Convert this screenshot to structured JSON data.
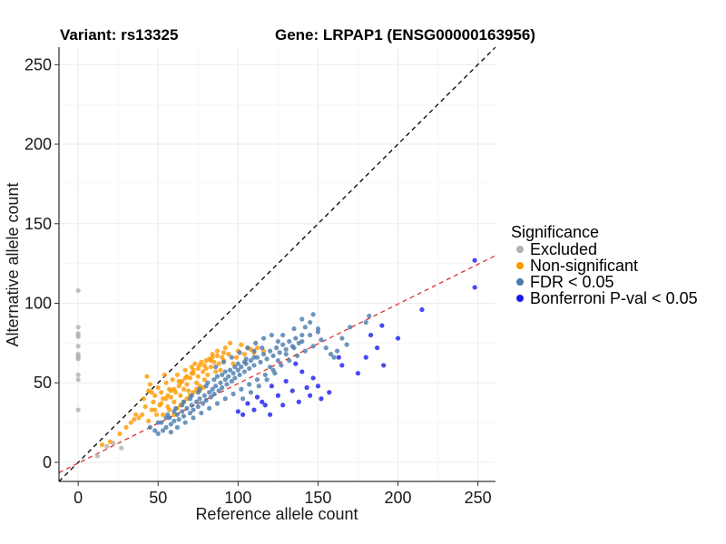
{
  "chart_data": {
    "type": "scatter",
    "title_left": "Variant: rs13325",
    "title_right": "Gene: LRPAP1 (ENSG00000163956)",
    "xlabel": "Reference allele count",
    "ylabel": "Alternative allele count",
    "xlim": [
      -12,
      261
    ],
    "ylim": [
      -12,
      261
    ],
    "x_ticks": [
      0,
      50,
      100,
      150,
      200,
      250
    ],
    "y_ticks": [
      0,
      50,
      100,
      150,
      200,
      250
    ],
    "grid": true,
    "legend": {
      "title": "Significance",
      "position": "right",
      "items": [
        {
          "label": "Excluded",
          "color": "#b0b0b0"
        },
        {
          "label": "Non-significant",
          "color": "#ff9900"
        },
        {
          "label": "FDR < 0.05",
          "color": "#4a7bab"
        },
        {
          "label": "Bonferroni P-val < 0.05",
          "color": "#1a1aee"
        }
      ]
    },
    "reference_lines": [
      {
        "kind": "identity",
        "slope": 1,
        "intercept": 0,
        "color": "#000000",
        "style": "dashed"
      },
      {
        "kind": "fit",
        "slope": 0.5,
        "intercept": -0.5,
        "color": "#e03030",
        "style": "dashed"
      }
    ],
    "series": [
      {
        "name": "Excluded",
        "color": "#b0b0b0",
        "points": [
          [
            0,
            108
          ],
          [
            0,
            85
          ],
          [
            0,
            81
          ],
          [
            0,
            80
          ],
          [
            0,
            79
          ],
          [
            0,
            73
          ],
          [
            0,
            68
          ],
          [
            0,
            67
          ],
          [
            0,
            66
          ],
          [
            0,
            65
          ],
          [
            0,
            55
          ],
          [
            0,
            52
          ],
          [
            0,
            33
          ],
          [
            27,
            9
          ],
          [
            22,
            12
          ],
          [
            12,
            4
          ],
          [
            18,
            10
          ]
        ]
      },
      {
        "name": "Non-significant",
        "color": "#ff9900",
        "points": [
          [
            43,
            54
          ],
          [
            45,
            49
          ],
          [
            44,
            45
          ],
          [
            48,
            42
          ],
          [
            50,
            47
          ],
          [
            52,
            44
          ],
          [
            47,
            38
          ],
          [
            46,
            33
          ],
          [
            49,
            30
          ],
          [
            51,
            36
          ],
          [
            53,
            40
          ],
          [
            55,
            50
          ],
          [
            57,
            46
          ],
          [
            54,
            55
          ],
          [
            58,
            41
          ],
          [
            60,
            38
          ],
          [
            56,
            35
          ],
          [
            61,
            44
          ],
          [
            63,
            48
          ],
          [
            59,
            52
          ],
          [
            62,
            55
          ],
          [
            64,
            42
          ],
          [
            66,
            46
          ],
          [
            65,
            51
          ],
          [
            67,
            58
          ],
          [
            68,
            49
          ],
          [
            70,
            53
          ],
          [
            69,
            45
          ],
          [
            71,
            60
          ],
          [
            72,
            56
          ],
          [
            74,
            50
          ],
          [
            73,
            62
          ],
          [
            75,
            54
          ],
          [
            76,
            48
          ],
          [
            78,
            57
          ],
          [
            77,
            63
          ],
          [
            79,
            52
          ],
          [
            80,
            59
          ],
          [
            82,
            65
          ],
          [
            81,
            55
          ],
          [
            83,
            60
          ],
          [
            84,
            68
          ],
          [
            86,
            57
          ],
          [
            85,
            63
          ],
          [
            88,
            62
          ],
          [
            87,
            70
          ],
          [
            90,
            66
          ],
          [
            89,
            58
          ],
          [
            92,
            72
          ],
          [
            91,
            64
          ],
          [
            94,
            68
          ],
          [
            95,
            75
          ],
          [
            97,
            62
          ],
          [
            99,
            66
          ],
          [
            100,
            70
          ],
          [
            102,
            74
          ],
          [
            104,
            68
          ],
          [
            106,
            72
          ],
          [
            108,
            71
          ],
          [
            110,
            69
          ],
          [
            112,
            72
          ],
          [
            116,
            70
          ],
          [
            40,
            30
          ],
          [
            42,
            35
          ],
          [
            38,
            28
          ],
          [
            44,
            26
          ],
          [
            41,
            40
          ],
          [
            46,
            44
          ],
          [
            53,
            30
          ],
          [
            57,
            33
          ],
          [
            60,
            30
          ],
          [
            62,
            34
          ],
          [
            64,
            36
          ],
          [
            66,
            38
          ],
          [
            68,
            40
          ],
          [
            70,
            42
          ],
          [
            72,
            44
          ],
          [
            74,
            46
          ],
          [
            76,
            45
          ],
          [
            78,
            47
          ],
          [
            55,
            40
          ],
          [
            58,
            45
          ],
          [
            63,
            51
          ],
          [
            67,
            53
          ],
          [
            71,
            56
          ],
          [
            75,
            59
          ],
          [
            79,
            61
          ],
          [
            83,
            64
          ],
          [
            87,
            67
          ],
          [
            91,
            69
          ],
          [
            48,
            33
          ],
          [
            52,
            37
          ],
          [
            56,
            42
          ],
          [
            60,
            46
          ],
          [
            64,
            50
          ],
          [
            68,
            54
          ],
          [
            72,
            58
          ],
          [
            76,
            61
          ],
          [
            80,
            64
          ],
          [
            84,
            66
          ],
          [
            26,
            18
          ],
          [
            30,
            22
          ],
          [
            33,
            25
          ],
          [
            36,
            30
          ],
          [
            35,
            27
          ],
          [
            20,
            13
          ],
          [
            15,
            11
          ]
        ]
      },
      {
        "name": "FDR < 0.05",
        "color": "#4a7bab",
        "points": [
          [
            45,
            22
          ],
          [
            48,
            20
          ],
          [
            50,
            18
          ],
          [
            52,
            25
          ],
          [
            55,
            22
          ],
          [
            57,
            28
          ],
          [
            58,
            24
          ],
          [
            60,
            26
          ],
          [
            62,
            30
          ],
          [
            63,
            27
          ],
          [
            65,
            32
          ],
          [
            66,
            29
          ],
          [
            68,
            34
          ],
          [
            70,
            31
          ],
          [
            71,
            36
          ],
          [
            72,
            33
          ],
          [
            74,
            38
          ],
          [
            75,
            35
          ],
          [
            76,
            40
          ],
          [
            78,
            37
          ],
          [
            79,
            42
          ],
          [
            80,
            39
          ],
          [
            82,
            44
          ],
          [
            83,
            41
          ],
          [
            84,
            46
          ],
          [
            85,
            43
          ],
          [
            86,
            48
          ],
          [
            88,
            45
          ],
          [
            89,
            50
          ],
          [
            90,
            47
          ],
          [
            92,
            52
          ],
          [
            93,
            49
          ],
          [
            94,
            54
          ],
          [
            96,
            51
          ],
          [
            97,
            56
          ],
          [
            98,
            53
          ],
          [
            100,
            58
          ],
          [
            101,
            55
          ],
          [
            102,
            60
          ],
          [
            104,
            57
          ],
          [
            105,
            62
          ],
          [
            107,
            59
          ],
          [
            108,
            64
          ],
          [
            110,
            61
          ],
          [
            112,
            66
          ],
          [
            114,
            63
          ],
          [
            116,
            68
          ],
          [
            118,
            65
          ],
          [
            120,
            70
          ],
          [
            122,
            67
          ],
          [
            124,
            72
          ],
          [
            126,
            69
          ],
          [
            128,
            74
          ],
          [
            130,
            71
          ],
          [
            132,
            76
          ],
          [
            134,
            73
          ],
          [
            136,
            78
          ],
          [
            138,
            75
          ],
          [
            140,
            80
          ],
          [
            142,
            85
          ],
          [
            145,
            88
          ],
          [
            147,
            93
          ],
          [
            150,
            82
          ],
          [
            152,
            77
          ],
          [
            155,
            72
          ],
          [
            158,
            68
          ],
          [
            160,
            66
          ],
          [
            162,
            70
          ],
          [
            165,
            78
          ],
          [
            168,
            74
          ],
          [
            180,
            88
          ],
          [
            182,
            92
          ],
          [
            170,
            85
          ],
          [
            140,
            90
          ],
          [
            135,
            84
          ],
          [
            128,
            80
          ],
          [
            125,
            76
          ],
          [
            115,
            72
          ],
          [
            110,
            70
          ],
          [
            105,
            65
          ],
          [
            100,
            62
          ],
          [
            95,
            58
          ],
          [
            90,
            55
          ],
          [
            85,
            52
          ],
          [
            80,
            48
          ],
          [
            75,
            44
          ],
          [
            70,
            40
          ],
          [
            65,
            36
          ],
          [
            60,
            32
          ],
          [
            55,
            28
          ],
          [
            50,
            25
          ],
          [
            53,
            20
          ],
          [
            58,
            19
          ],
          [
            62,
            22
          ],
          [
            67,
            25
          ],
          [
            72,
            28
          ],
          [
            77,
            31
          ],
          [
            82,
            34
          ],
          [
            87,
            37
          ],
          [
            92,
            40
          ],
          [
            97,
            43
          ],
          [
            102,
            46
          ],
          [
            107,
            49
          ],
          [
            112,
            52
          ],
          [
            117,
            55
          ],
          [
            122,
            58
          ],
          [
            127,
            61
          ],
          [
            132,
            64
          ],
          [
            137,
            67
          ],
          [
            142,
            70
          ],
          [
            147,
            73
          ],
          [
            103,
            40
          ],
          [
            108,
            44
          ],
          [
            113,
            48
          ],
          [
            118,
            52
          ],
          [
            123,
            56
          ],
          [
            86,
            60
          ],
          [
            91,
            63
          ],
          [
            96,
            66
          ],
          [
            101,
            69
          ],
          [
            106,
            72
          ],
          [
            111,
            75
          ],
          [
            116,
            78
          ],
          [
            121,
            80
          ],
          [
            56,
            30
          ],
          [
            61,
            34
          ],
          [
            66,
            38
          ],
          [
            71,
            42
          ],
          [
            76,
            46
          ],
          [
            81,
            50
          ],
          [
            87,
            54
          ],
          [
            92,
            57
          ],
          [
            98,
            60
          ],
          [
            104,
            63
          ],
          [
            110,
            66
          ],
          [
            120,
            60
          ],
          [
            125,
            64
          ],
          [
            130,
            68
          ],
          [
            135,
            72
          ],
          [
            140,
            76
          ],
          [
            145,
            80
          ],
          [
            150,
            84
          ]
        ]
      },
      {
        "name": "Bonferroni P-val < 0.05",
        "color": "#1a1aee",
        "points": [
          [
            248,
            127
          ],
          [
            248,
            110
          ],
          [
            215,
            96
          ],
          [
            200,
            78
          ],
          [
            190,
            86
          ],
          [
            191,
            61
          ],
          [
            187,
            72
          ],
          [
            183,
            80
          ],
          [
            180,
            66
          ],
          [
            175,
            56
          ],
          [
            165,
            61
          ],
          [
            163,
            66
          ],
          [
            157,
            44
          ],
          [
            150,
            48
          ],
          [
            147,
            53
          ],
          [
            145,
            42
          ],
          [
            140,
            57
          ],
          [
            138,
            38
          ],
          [
            134,
            45
          ],
          [
            130,
            51
          ],
          [
            128,
            36
          ],
          [
            125,
            42
          ],
          [
            121,
            48
          ],
          [
            120,
            30
          ],
          [
            117,
            36
          ],
          [
            115,
            38
          ],
          [
            112,
            41
          ],
          [
            110,
            33
          ],
          [
            106,
            37
          ],
          [
            103,
            30
          ],
          [
            100,
            32
          ],
          [
            152,
            40
          ],
          [
            143,
            47
          ],
          [
            136,
            62
          ]
        ]
      }
    ]
  }
}
